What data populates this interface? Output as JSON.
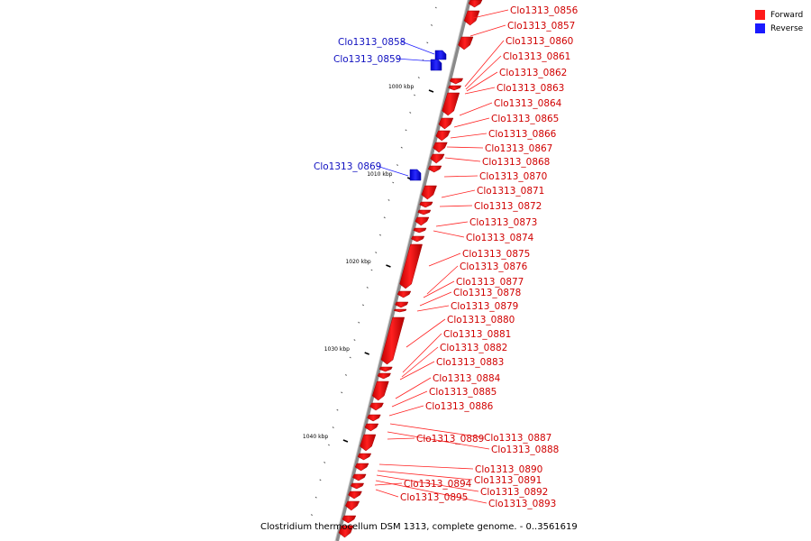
{
  "legend": {
    "forward_label": "Forward",
    "reverse_label": "Reverse",
    "forward_color": "#ff1a1a",
    "reverse_color": "#1a1aff"
  },
  "caption": "Clostridium thermocellum DSM 1313, complete genome. - 0..3561619",
  "ticks": [
    "1000 kbp",
    "1010 kbp",
    "1020 kbp",
    "1030 kbp",
    "1040 kbp"
  ],
  "reverse_genes": [
    "Clo1313_0858",
    "Clo1313_0859",
    "Clo1313_0869"
  ],
  "forward_genes": [
    "Clo1313_0856",
    "Clo1313_0857",
    "Clo1313_0860",
    "Clo1313_0861",
    "Clo1313_0862",
    "Clo1313_0863",
    "Clo1313_0864",
    "Clo1313_0865",
    "Clo1313_0866",
    "Clo1313_0867",
    "Clo1313_0868",
    "Clo1313_0870",
    "Clo1313_0871",
    "Clo1313_0872",
    "Clo1313_0873",
    "Clo1313_0874",
    "Clo1313_0875",
    "Clo1313_0876",
    "Clo1313_0877",
    "Clo1313_0878",
    "Clo1313_0879",
    "Clo1313_0880",
    "Clo1313_0881",
    "Clo1313_0882",
    "Clo1313_0883",
    "Clo1313_0884",
    "Clo1313_0885",
    "Clo1313_0886",
    "Clo1313_0887",
    "Clo1313_0888",
    "Clo1313_0889",
    "Clo1313_0890",
    "Clo1313_0891",
    "Clo1313_0892",
    "Clo1313_0893",
    "Clo1313_0894",
    "Clo1313_0895"
  ]
}
